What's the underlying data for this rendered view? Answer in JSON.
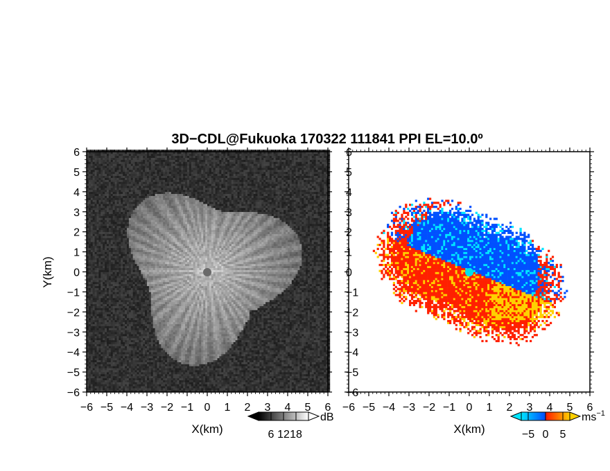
{
  "chart_data": [
    {
      "type": "heatmap",
      "title": "3D−CDL@Fukuoka 170322 111841 PPI EL=10.0º",
      "xlabel": "X(km)",
      "ylabel": "Y(km)",
      "xlim": [
        -6,
        6
      ],
      "ylim": [
        -6,
        6
      ],
      "x_ticks": [
        "−6",
        "−5",
        "−4",
        "−3",
        "−2",
        "−1",
        "0",
        "1",
        "2",
        "3",
        "4",
        "5",
        "6"
      ],
      "y_ticks": [
        "6",
        "5",
        "4",
        "3",
        "2",
        "1",
        "0",
        "−1",
        "−2",
        "−3",
        "−4",
        "−5",
        "−6"
      ],
      "colorbar": {
        "unit": "dB",
        "ticks": [
          "6",
          "12",
          "18"
        ],
        "range": [
          0,
          24
        ],
        "colors": [
          "#000000",
          "#ffffff"
        ]
      },
      "radar_center": [
        0,
        0
      ],
      "echo_extent_km": 4.8
    },
    {
      "type": "heatmap",
      "xlabel": "X(km)",
      "xlim": [
        -6,
        6
      ],
      "ylim": [
        -6,
        6
      ],
      "x_ticks": [
        "−6",
        "−5",
        "−4",
        "−3",
        "−2",
        "−1",
        "0",
        "1",
        "2",
        "3",
        "4",
        "5",
        "6"
      ],
      "y_ticks": [
        "6",
        "5",
        "4",
        "3",
        "2",
        "1",
        "0",
        "−1",
        "−2",
        "−3",
        "−4",
        "−5",
        "−6"
      ],
      "colorbar": {
        "unit": "ms",
        "unit_superscript": "−1",
        "ticks": [
          "−5",
          "0",
          "5"
        ],
        "range": [
          -7,
          7
        ],
        "colors": [
          "#00e5ff",
          "#0050ff",
          "#ff2000",
          "#ffd000"
        ]
      },
      "radar_center": [
        0,
        0
      ],
      "echo_extent_km": 5.0
    }
  ]
}
